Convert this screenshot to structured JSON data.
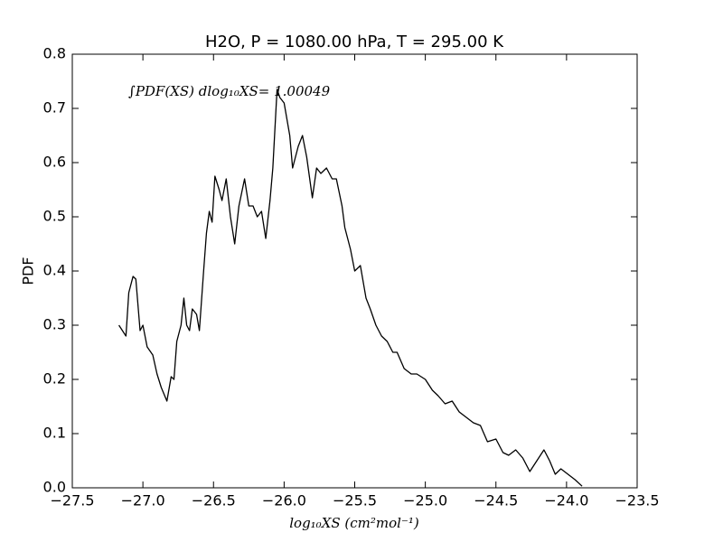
{
  "chart_data": {
    "type": "line",
    "title": "H2O, P = 1080.00 hPa, T = 295.00 K",
    "x_label": "log₁₀XS (cm²mol⁻¹)",
    "y_label": "PDF",
    "annotation": "∫PDF(XS) dlog₁₀XS= 1.00049",
    "xlim": [
      -27.5,
      -23.5
    ],
    "ylim": [
      0,
      0.8
    ],
    "xticks": [
      {
        "value": -27.5,
        "label": "−27.5"
      },
      {
        "value": -27.0,
        "label": "−27.0"
      },
      {
        "value": -26.5,
        "label": "−26.5"
      },
      {
        "value": -26.0,
        "label": "−26.0"
      },
      {
        "value": -25.5,
        "label": "−25.5"
      },
      {
        "value": -25.0,
        "label": "−25.0"
      },
      {
        "value": -24.5,
        "label": "−24.5"
      },
      {
        "value": -24.0,
        "label": "−24.0"
      },
      {
        "value": -23.5,
        "label": "−23.5"
      }
    ],
    "yticks": [
      {
        "value": 0,
        "label": "0.0"
      },
      0.1,
      0.2,
      0.3,
      0.4,
      0.5,
      0.6,
      0.7,
      0.8
    ],
    "grid": false,
    "series": [
      {
        "color": "#000000",
        "x": [
          -27.17,
          -27.12,
          -27.1,
          -27.07,
          -27.05,
          -27.02,
          -27.0,
          -26.97,
          -26.93,
          -26.9,
          -26.87,
          -26.83,
          -26.8,
          -26.78,
          -26.76,
          -26.73,
          -26.71,
          -26.69,
          -26.67,
          -26.65,
          -26.62,
          -26.6,
          -26.57,
          -26.55,
          -26.53,
          -26.51,
          -26.49,
          -26.46,
          -26.44,
          -26.41,
          -26.38,
          -26.35,
          -26.32,
          -26.28,
          -26.25,
          -26.22,
          -26.19,
          -26.16,
          -26.13,
          -26.1,
          -26.08,
          -26.05,
          -26.03,
          -26.0,
          -25.96,
          -25.94,
          -25.9,
          -25.87,
          -25.84,
          -25.8,
          -25.77,
          -25.74,
          -25.7,
          -25.66,
          -25.63,
          -25.59,
          -25.57,
          -25.53,
          -25.5,
          -25.46,
          -25.42,
          -25.39,
          -25.35,
          -25.31,
          -25.27,
          -25.23,
          -25.2,
          -25.15,
          -25.1,
          -25.06,
          -25.0,
          -24.95,
          -24.91,
          -24.86,
          -24.81,
          -24.76,
          -24.71,
          -24.66,
          -24.61,
          -24.56,
          -24.5,
          -24.45,
          -24.41,
          -24.36,
          -24.31,
          -24.26,
          -24.21,
          -24.16,
          -24.12,
          -24.08,
          -24.04,
          -23.99,
          -23.94,
          -23.89
        ],
        "values": [
          0.3,
          0.28,
          0.36,
          0.39,
          0.385,
          0.29,
          0.3,
          0.26,
          0.245,
          0.21,
          0.185,
          0.16,
          0.205,
          0.2,
          0.27,
          0.3,
          0.35,
          0.3,
          0.29,
          0.33,
          0.32,
          0.29,
          0.4,
          0.47,
          0.51,
          0.49,
          0.575,
          0.55,
          0.53,
          0.57,
          0.5,
          0.45,
          0.52,
          0.57,
          0.52,
          0.52,
          0.5,
          0.51,
          0.46,
          0.53,
          0.59,
          0.735,
          0.72,
          0.71,
          0.65,
          0.59,
          0.63,
          0.65,
          0.61,
          0.535,
          0.59,
          0.58,
          0.59,
          0.57,
          0.57,
          0.52,
          0.48,
          0.44,
          0.4,
          0.41,
          0.35,
          0.33,
          0.3,
          0.28,
          0.27,
          0.25,
          0.25,
          0.22,
          0.21,
          0.21,
          0.2,
          0.18,
          0.17,
          0.155,
          0.16,
          0.14,
          0.13,
          0.12,
          0.115,
          0.085,
          0.09,
          0.065,
          0.06,
          0.07,
          0.055,
          0.03,
          0.05,
          0.07,
          0.05,
          0.025,
          0.035,
          0.025,
          0.015,
          0.003
        ]
      }
    ]
  }
}
